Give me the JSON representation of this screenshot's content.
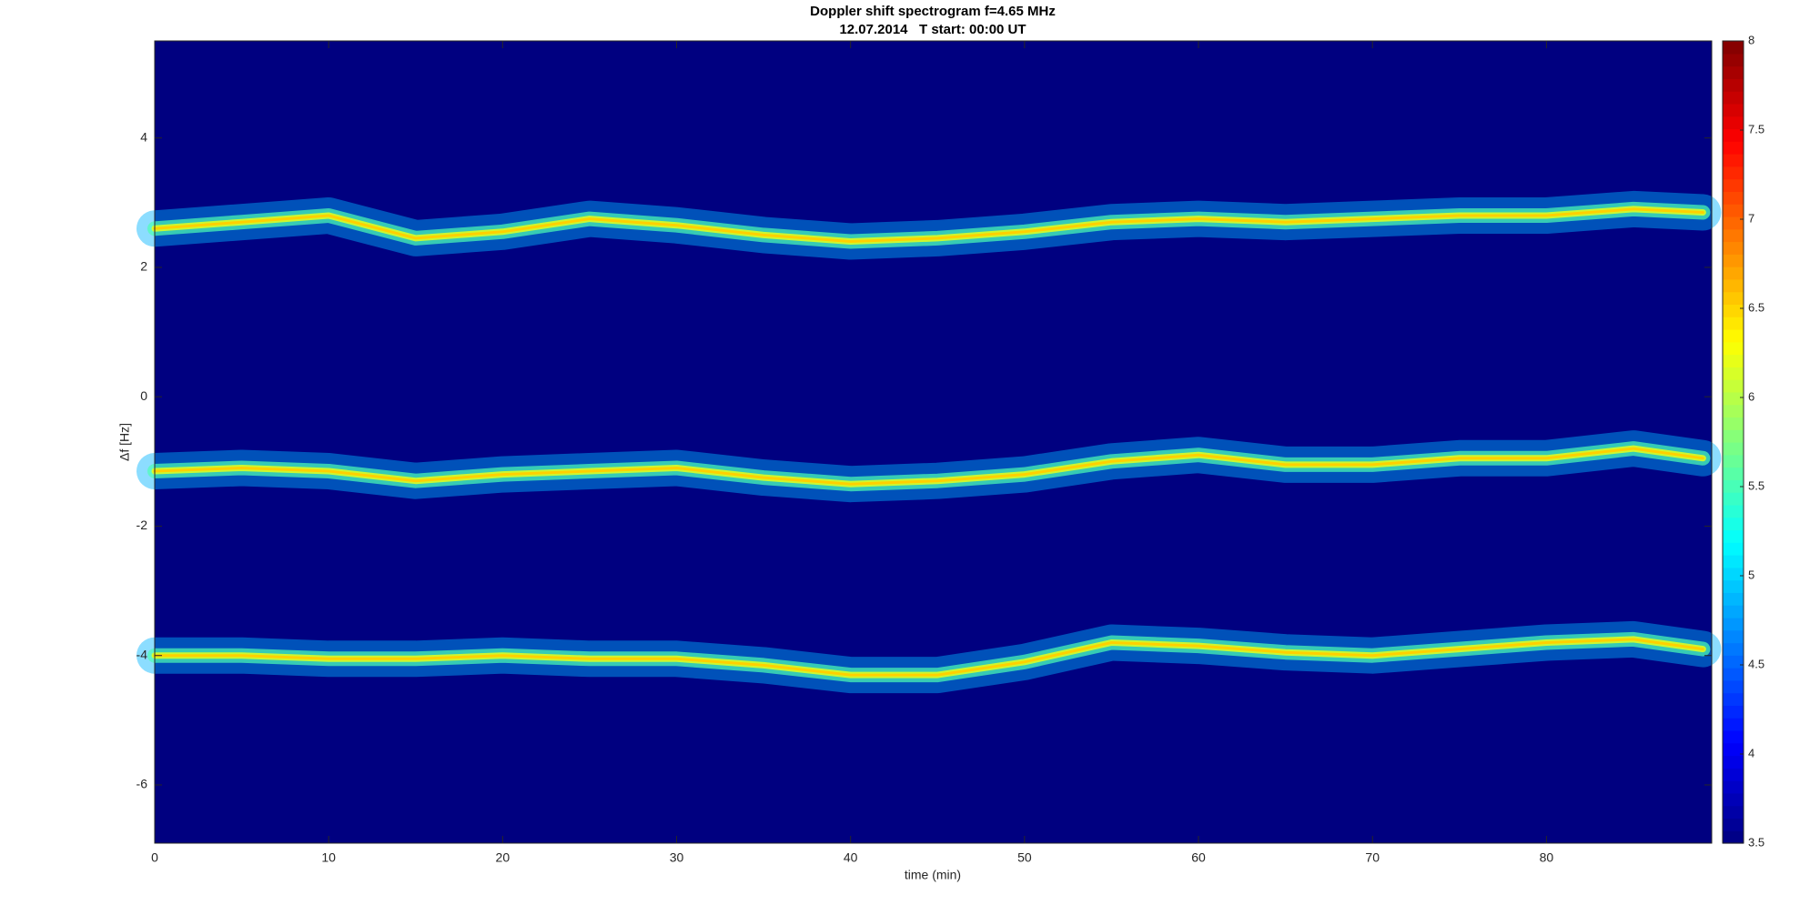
{
  "chart_data": {
    "type": "spectrogram",
    "title": "Doppler shift spectrogram f=4.65 MHz",
    "subtitle": "12.07.2014   T start: 00:00 UT",
    "x_label": "time (min)",
    "y_label": "Δf [Hz]",
    "x": [
      0,
      5,
      10,
      15,
      20,
      25,
      30,
      35,
      40,
      45,
      50,
      55,
      60,
      65,
      70,
      75,
      80,
      85,
      89
    ],
    "series": [
      {
        "color": "#ffd000",
        "values": [
          2.6,
          2.7,
          2.8,
          2.45,
          2.55,
          2.75,
          2.65,
          2.5,
          2.4,
          2.45,
          2.55,
          2.7,
          2.75,
          2.7,
          2.75,
          2.8,
          2.8,
          2.9,
          2.85
        ]
      },
      {
        "color": "#ffd000",
        "values": [
          -1.15,
          -1.1,
          -1.15,
          -1.3,
          -1.2,
          -1.15,
          -1.1,
          -1.25,
          -1.35,
          -1.3,
          -1.2,
          -1.0,
          -0.9,
          -1.05,
          -1.05,
          -0.95,
          -0.95,
          -0.8,
          -0.95
        ]
      },
      {
        "color": "#ffd000",
        "values": [
          -4.0,
          -4.0,
          -4.05,
          -4.05,
          -4.0,
          -4.05,
          -4.05,
          -4.15,
          -4.3,
          -4.3,
          -4.1,
          -3.8,
          -3.85,
          -3.95,
          -4.0,
          -3.9,
          -3.8,
          -3.75,
          -3.9
        ]
      }
    ],
    "xlim": [
      0,
      89.5
    ],
    "xticks": [
      0,
      10,
      20,
      30,
      40,
      50,
      60,
      70,
      80
    ],
    "ylim": [
      -6.9,
      5.5
    ],
    "yticks": [
      -6,
      -4,
      -2,
      0,
      2,
      4
    ],
    "colormap": "jet",
    "clim": [
      3.5,
      8
    ],
    "cticks": [
      3.5,
      4,
      4.5,
      5,
      5.5,
      6,
      6.5,
      7,
      7.5,
      8
    ]
  }
}
